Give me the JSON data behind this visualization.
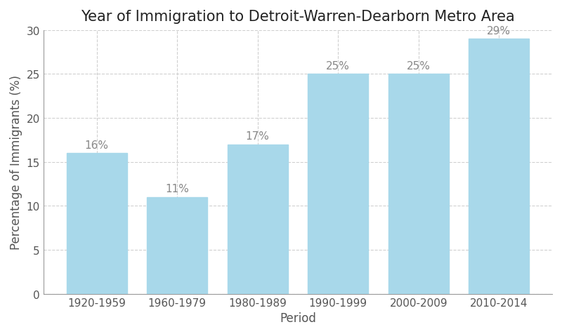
{
  "title": "Year of Immigration to Detroit-Warren-Dearborn Metro Area",
  "xlabel": "Period",
  "ylabel": "Percentage of Immigrants (%)",
  "categories": [
    "1920-1959",
    "1960-1979",
    "1980-1989",
    "1990-1999",
    "2000-2009",
    "2010-2014"
  ],
  "values": [
    16,
    11,
    17,
    25,
    25,
    29
  ],
  "labels": [
    "16%",
    "11%",
    "17%",
    "25%",
    "25%",
    "29%"
  ],
  "bar_color": "#a8d8ea",
  "bar_edgecolor": "#a8d8ea",
  "ylim": [
    0,
    30
  ],
  "yticks": [
    0,
    5,
    10,
    15,
    20,
    25,
    30
  ],
  "grid_color": "#d0d0d0",
  "background_color": "#ffffff",
  "title_fontsize": 15,
  "axis_label_fontsize": 12,
  "tick_fontsize": 11,
  "annotation_fontsize": 11,
  "annotation_color": "#888888"
}
